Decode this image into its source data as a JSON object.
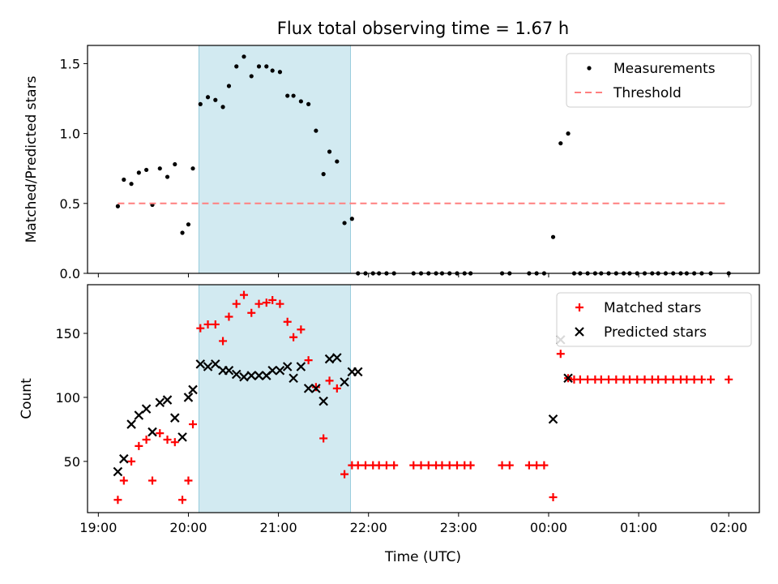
{
  "title": "Flux total observing time = 1.67 h",
  "colors": {
    "measurement": "#000000",
    "threshold": "#ff7f7f",
    "matched": "#ff0000",
    "predicted": "#000000",
    "span": "#add8e6"
  },
  "shared_x": {
    "label": "Time (UTC)",
    "range_hours_after_19": [
      -0.12,
      7.34
    ],
    "ticks": [
      "19:00",
      "20:00",
      "21:00",
      "22:00",
      "23:00",
      "00:00",
      "01:00",
      "02:00"
    ],
    "tick_hours_after_19": [
      0,
      1,
      2,
      3,
      4,
      5,
      6,
      7
    ],
    "shaded_span": [
      "20:07",
      "21:48"
    ]
  },
  "chart_data": [
    {
      "type": "scatter",
      "panel": "top",
      "ylabel": "Matched/Predicted stars",
      "ylim": [
        0,
        1.63
      ],
      "yticks": [
        "0.0",
        "0.5",
        "1.0",
        "1.5"
      ],
      "ytick_values": [
        0,
        0.5,
        1.0,
        1.5
      ],
      "legend": {
        "position": "upper right",
        "entries": [
          "Measurements",
          "Threshold"
        ]
      },
      "series": [
        {
          "name": "Measurements",
          "marker": "dot",
          "x": [
            "19:13",
            "19:17",
            "19:22",
            "19:27",
            "19:32",
            "19:36",
            "19:41",
            "19:46",
            "19:51",
            "19:56",
            "20:00",
            "20:03",
            "20:08",
            "20:13",
            "20:18",
            "20:23",
            "20:27",
            "20:32",
            "20:37",
            "20:42",
            "20:47",
            "20:52",
            "20:56",
            "21:01",
            "21:06",
            "21:10",
            "21:15",
            "21:20",
            "21:25",
            "21:30",
            "21:34",
            "21:39",
            "21:44",
            "21:49",
            "21:53",
            "21:58",
            "22:03",
            "22:07",
            "22:12",
            "22:17",
            "22:30",
            "22:35",
            "22:40",
            "22:45",
            "22:49",
            "22:54",
            "22:59",
            "23:04",
            "23:08",
            "23:29",
            "23:34",
            "23:47",
            "23:52",
            "23:57",
            "00:03",
            "00:08",
            "00:13",
            "00:17",
            "00:21",
            "00:26",
            "00:31",
            "00:35",
            "00:40",
            "00:45",
            "00:50",
            "00:54",
            "00:59",
            "01:04",
            "01:09",
            "01:13",
            "01:18",
            "01:23",
            "01:28",
            "01:32",
            "01:37",
            "01:42",
            "01:48",
            "02:00"
          ],
          "y": [
            0.48,
            0.67,
            0.64,
            0.72,
            0.74,
            0.49,
            0.75,
            0.69,
            0.78,
            0.29,
            0.35,
            0.75,
            1.21,
            1.26,
            1.24,
            1.19,
            1.34,
            1.48,
            1.55,
            1.41,
            1.48,
            1.48,
            1.45,
            1.44,
            1.27,
            1.27,
            1.23,
            1.21,
            1.02,
            0.71,
            0.87,
            0.8,
            0.36,
            0.39,
            0.0,
            0.0,
            0.0,
            0.0,
            0.0,
            0.0,
            0.0,
            0.0,
            0.0,
            0.0,
            0.0,
            0.0,
            0.0,
            0.0,
            0.0,
            0.0,
            0.0,
            0.0,
            0.0,
            0.0,
            0.26,
            0.93,
            1.0,
            0.0,
            0.0,
            0.0,
            0.0,
            0.0,
            0.0,
            0.0,
            0.0,
            0.0,
            0.0,
            0.0,
            0.0,
            0.0,
            0.0,
            0.0,
            0.0,
            0.0,
            0.0,
            0.0,
            0.0,
            0.0
          ]
        },
        {
          "name": "Threshold",
          "line": "dashed",
          "x": [
            "19:13",
            "02:00"
          ],
          "y": [
            0.5,
            0.5
          ]
        }
      ]
    },
    {
      "type": "scatter",
      "panel": "bottom",
      "ylabel": "Count",
      "ylim": [
        10,
        188
      ],
      "yticks": [
        "50",
        "100",
        "150"
      ],
      "ytick_values": [
        50,
        100,
        150
      ],
      "legend": {
        "position": "upper right",
        "entries": [
          "Matched stars",
          "Predicted stars"
        ]
      },
      "series": [
        {
          "name": "Matched stars",
          "marker": "plus",
          "x": [
            "19:13",
            "19:17",
            "19:22",
            "19:27",
            "19:32",
            "19:36",
            "19:41",
            "19:46",
            "19:51",
            "19:56",
            "20:00",
            "20:03",
            "20:08",
            "20:13",
            "20:18",
            "20:23",
            "20:27",
            "20:32",
            "20:37",
            "20:42",
            "20:47",
            "20:52",
            "20:56",
            "21:01",
            "21:06",
            "21:10",
            "21:15",
            "21:20",
            "21:25",
            "21:30",
            "21:34",
            "21:39",
            "21:44",
            "21:49",
            "21:53",
            "21:58",
            "22:03",
            "22:07",
            "22:12",
            "22:17",
            "22:30",
            "22:35",
            "22:40",
            "22:45",
            "22:49",
            "22:54",
            "22:59",
            "23:04",
            "23:08",
            "23:29",
            "23:34",
            "23:47",
            "23:52",
            "23:57",
            "00:03",
            "00:08",
            "00:13",
            "00:17",
            "00:21",
            "00:26",
            "00:31",
            "00:35",
            "00:40",
            "00:45",
            "00:50",
            "00:54",
            "00:59",
            "01:04",
            "01:09",
            "01:13",
            "01:18",
            "01:23",
            "01:28",
            "01:32",
            "01:37",
            "01:42",
            "01:48",
            "02:00"
          ],
          "y": [
            20,
            35,
            50,
            62,
            67,
            35,
            72,
            67,
            65,
            20,
            35,
            79,
            154,
            157,
            157,
            144,
            163,
            173,
            180,
            166,
            173,
            174,
            176,
            173,
            159,
            147,
            153,
            129,
            108,
            68,
            113,
            107,
            40,
            47,
            47,
            47,
            47,
            47,
            47,
            47,
            47,
            47,
            47,
            47,
            47,
            47,
            47,
            47,
            47,
            47,
            47,
            47,
            47,
            47,
            22,
            134,
            115,
            114,
            114,
            114,
            114,
            114,
            114,
            114,
            114,
            114,
            114,
            114,
            114,
            114,
            114,
            114,
            114,
            114,
            114,
            114,
            114,
            114
          ]
        },
        {
          "name": "Predicted stars",
          "marker": "x",
          "x": [
            "19:13",
            "19:17",
            "19:22",
            "19:27",
            "19:32",
            "19:36",
            "19:41",
            "19:46",
            "19:51",
            "19:56",
            "20:00",
            "20:03",
            "20:08",
            "20:13",
            "20:18",
            "20:23",
            "20:27",
            "20:32",
            "20:37",
            "20:42",
            "20:47",
            "20:52",
            "20:56",
            "21:01",
            "21:06",
            "21:10",
            "21:15",
            "21:20",
            "21:25",
            "21:30",
            "21:34",
            "21:39",
            "21:44",
            "21:49",
            "21:53",
            "00:03",
            "00:08",
            "00:13"
          ],
          "y": [
            42,
            52,
            79,
            86,
            91,
            73,
            96,
            98,
            84,
            69,
            100,
            106,
            126,
            124,
            126,
            121,
            121,
            118,
            116,
            117,
            117,
            117,
            121,
            121,
            124,
            115,
            124,
            107,
            107,
            97,
            130,
            131,
            112,
            120,
            120,
            83,
            145,
            115
          ]
        }
      ]
    }
  ]
}
